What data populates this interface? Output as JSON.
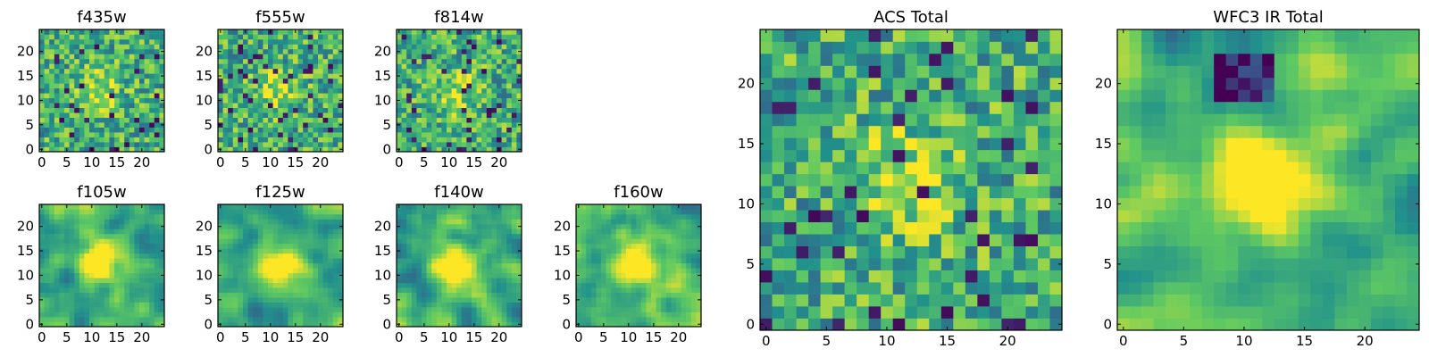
{
  "figure": {
    "colormap": "viridis",
    "colormap_stops": [
      "#440154",
      "#3b528b",
      "#21918c",
      "#5ec962",
      "#fde725"
    ]
  },
  "chart_data": [
    {
      "type": "heatmap",
      "title": "f435w",
      "grid_size": 25,
      "xlim": [
        0,
        24
      ],
      "ylim": [
        0,
        24
      ],
      "xticks": [
        "0",
        "5",
        "10",
        "15",
        "20"
      ],
      "yticks": [
        "0",
        "5",
        "10",
        "15",
        "20"
      ],
      "noise": "very noisy, faint central brightening",
      "values": []
    },
    {
      "type": "heatmap",
      "title": "f555w",
      "grid_size": 25,
      "xlim": [
        0,
        24
      ],
      "ylim": [
        0,
        24
      ],
      "xticks": [
        "0",
        "5",
        "10",
        "15",
        "20"
      ],
      "yticks": [
        "0",
        "5",
        "10",
        "15",
        "20"
      ],
      "noise": "very noisy, faint central brightening",
      "values": []
    },
    {
      "type": "heatmap",
      "title": "f814w",
      "grid_size": 25,
      "xlim": [
        0,
        24
      ],
      "ylim": [
        0,
        24
      ],
      "xticks": [
        "0",
        "5",
        "10",
        "15",
        "20"
      ],
      "yticks": [
        "0",
        "5",
        "10",
        "15",
        "20"
      ],
      "noise": "noisy, central brightening",
      "values": []
    },
    {
      "type": "heatmap",
      "title": "f105w",
      "grid_size": 25,
      "xlim": [
        0,
        24
      ],
      "ylim": [
        0,
        24
      ],
      "xticks": [
        "0",
        "5",
        "10",
        "15",
        "20"
      ],
      "yticks": [
        "0",
        "5",
        "10",
        "15",
        "20"
      ],
      "noise": "smoothed, central source",
      "values": []
    },
    {
      "type": "heatmap",
      "title": "f125w",
      "grid_size": 25,
      "xlim": [
        0,
        24
      ],
      "ylim": [
        0,
        24
      ],
      "xticks": [
        "0",
        "5",
        "10",
        "15",
        "20"
      ],
      "yticks": [
        "0",
        "5",
        "10",
        "15",
        "20"
      ],
      "noise": "smoothed, central source",
      "values": []
    },
    {
      "type": "heatmap",
      "title": "f140w",
      "grid_size": 25,
      "xlim": [
        0,
        24
      ],
      "ylim": [
        0,
        24
      ],
      "xticks": [
        "0",
        "5",
        "10",
        "15",
        "20"
      ],
      "yticks": [
        "0",
        "5",
        "10",
        "15",
        "20"
      ],
      "noise": "smoothed, central source",
      "values": []
    },
    {
      "type": "heatmap",
      "title": "f160w",
      "grid_size": 25,
      "xlim": [
        0,
        24
      ],
      "ylim": [
        0,
        24
      ],
      "xticks": [
        "0",
        "5",
        "10",
        "15",
        "20"
      ],
      "yticks": [
        "0",
        "5",
        "10",
        "15",
        "20"
      ],
      "noise": "smoothed, central source",
      "values": []
    },
    {
      "type": "heatmap",
      "title": "ACS Total",
      "grid_size": 25,
      "xlim": [
        0,
        24
      ],
      "ylim": [
        0,
        24
      ],
      "xticks": [
        "0",
        "5",
        "10",
        "15",
        "20"
      ],
      "yticks": [
        "0",
        "5",
        "10",
        "15",
        "20"
      ],
      "noise": "noisy, bright region near center",
      "values": []
    },
    {
      "type": "heatmap",
      "title": "WFC3 IR Total",
      "grid_size": 25,
      "xlim": [
        0,
        24
      ],
      "ylim": [
        0,
        24
      ],
      "xticks": [
        "0",
        "5",
        "10",
        "15",
        "20"
      ],
      "yticks": [
        "0",
        "5",
        "10",
        "15",
        "20"
      ],
      "noise": "smoothed, bright blob near center, dark patch near top",
      "values": []
    }
  ]
}
